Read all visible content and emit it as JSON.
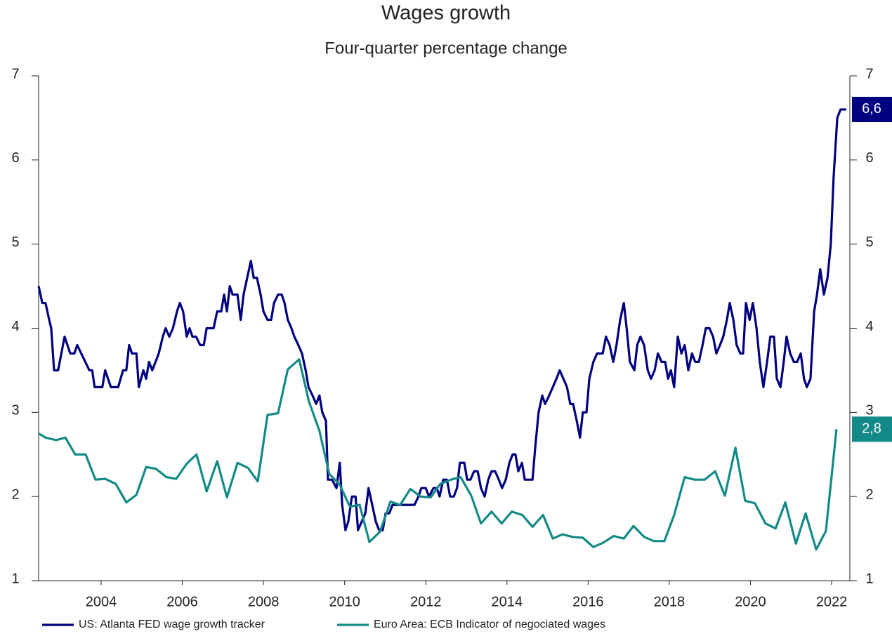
{
  "chart_data": {
    "type": "line",
    "title": "Wages growth",
    "subtitle": "Four-quarter percentage change",
    "xlim": [
      2002.46,
      2022.45
    ],
    "xticks": [
      2004,
      2006,
      2008,
      2010,
      2012,
      2014,
      2016,
      2018,
      2020,
      2022
    ],
    "ylim": [
      1,
      7
    ],
    "yticks": [
      1,
      2,
      3,
      4,
      5,
      6,
      7
    ],
    "y2lim": [
      1,
      7
    ],
    "y2ticks": [
      1,
      2,
      3,
      4,
      5,
      6,
      7
    ],
    "legend": "bottom",
    "series": [
      {
        "name": "US: Atlanta FED wage growth tracker",
        "color": "#000080",
        "end_label": "6,6",
        "x": [
          2002.46,
          2002.55,
          2002.63,
          2002.72,
          2002.77,
          2002.84,
          2002.94,
          2003.1,
          2003.24,
          2003.34,
          2003.41,
          2003.71,
          2003.78,
          2003.84,
          2004.03,
          2004.1,
          2004.24,
          2004.42,
          2004.54,
          2004.62,
          2004.69,
          2004.76,
          2004.87,
          2004.93,
          2005.04,
          2005.11,
          2005.18,
          2005.26,
          2005.42,
          2005.52,
          2005.59,
          2005.68,
          2005.77,
          2005.87,
          2005.94,
          2006.02,
          2006.11,
          2006.18,
          2006.25,
          2006.34,
          2006.44,
          2006.53,
          2006.6,
          2006.77,
          2006.86,
          2006.96,
          2007.03,
          2007.1,
          2007.17,
          2007.24,
          2007.36,
          2007.44,
          2007.51,
          2007.6,
          2007.69,
          2007.76,
          2007.84,
          2007.93,
          2008.0,
          2008.1,
          2008.19,
          2008.26,
          2008.36,
          2008.45,
          2008.52,
          2008.6,
          2008.69,
          2008.76,
          2008.86,
          2008.95,
          2009.04,
          2009.11,
          2009.21,
          2009.3,
          2009.38,
          2009.45,
          2009.54,
          2009.59,
          2009.69,
          2009.8,
          2009.88,
          2009.94,
          2010.02,
          2010.09,
          2010.18,
          2010.27,
          2010.33,
          2010.42,
          2010.51,
          2010.59,
          2010.68,
          2010.77,
          2010.85,
          2010.94,
          2011.01,
          2011.1,
          2011.18,
          2011.29,
          2011.37,
          2011.46,
          2011.72,
          2011.82,
          2011.89,
          2012.0,
          2012.08,
          2012.19,
          2012.27,
          2012.34,
          2012.43,
          2012.52,
          2012.6,
          2012.69,
          2012.77,
          2012.84,
          2012.95,
          2013.02,
          2013.1,
          2013.19,
          2013.28,
          2013.36,
          2013.45,
          2013.54,
          2013.62,
          2013.71,
          2013.8,
          2013.88,
          2013.97,
          2014.06,
          2014.14,
          2014.21,
          2014.28,
          2014.37,
          2014.44,
          2014.63,
          2014.7,
          2014.78,
          2014.87,
          2014.94,
          2015.04,
          2015.13,
          2015.22,
          2015.3,
          2015.39,
          2015.48,
          2015.56,
          2015.63,
          2015.72,
          2015.8,
          2015.87,
          2015.96,
          2016.03,
          2016.13,
          2016.22,
          2016.36,
          2016.44,
          2016.53,
          2016.62,
          2016.7,
          2016.79,
          2016.88,
          2016.95,
          2017.03,
          2017.14,
          2017.21,
          2017.29,
          2017.38,
          2017.47,
          2017.55,
          2017.64,
          2017.72,
          2017.81,
          2017.9,
          2017.97,
          2018.04,
          2018.12,
          2018.21,
          2018.3,
          2018.38,
          2018.47,
          2018.56,
          2018.64,
          2018.73,
          2018.82,
          2018.9,
          2018.99,
          2019.08,
          2019.16,
          2019.25,
          2019.33,
          2019.42,
          2019.49,
          2019.58,
          2019.66,
          2019.75,
          2019.82,
          2019.89,
          2019.98,
          2020.06,
          2020.15,
          2020.23,
          2020.32,
          2020.41,
          2020.49,
          2020.58,
          2020.65,
          2020.74,
          2020.82,
          2020.89,
          2020.98,
          2021.07,
          2021.15,
          2021.24,
          2021.32,
          2021.39,
          2021.48,
          2021.57,
          2021.64,
          2021.72,
          2021.81,
          2021.9,
          2021.98,
          2022.05,
          2022.14,
          2022.22,
          2022.36
        ],
        "values": [
          4.5,
          4.3,
          4.3,
          4.1,
          4.0,
          3.5,
          3.5,
          3.9,
          3.7,
          3.7,
          3.8,
          3.5,
          3.5,
          3.3,
          3.3,
          3.5,
          3.3,
          3.3,
          3.5,
          3.5,
          3.8,
          3.7,
          3.7,
          3.3,
          3.5,
          3.4,
          3.6,
          3.5,
          3.7,
          3.9,
          4.0,
          3.9,
          4.0,
          4.2,
          4.3,
          4.2,
          3.9,
          4.0,
          3.9,
          3.9,
          3.8,
          3.8,
          4.0,
          4.0,
          4.2,
          4.2,
          4.4,
          4.2,
          4.5,
          4.4,
          4.4,
          4.1,
          4.4,
          4.6,
          4.8,
          4.6,
          4.6,
          4.4,
          4.2,
          4.1,
          4.1,
          4.3,
          4.4,
          4.4,
          4.3,
          4.1,
          4.0,
          3.9,
          3.8,
          3.7,
          3.5,
          3.3,
          3.2,
          3.1,
          3.2,
          3.0,
          2.9,
          2.2,
          2.2,
          2.1,
          2.4,
          1.9,
          1.6,
          1.7,
          2.0,
          2.0,
          1.6,
          1.7,
          1.8,
          2.1,
          1.9,
          1.7,
          1.6,
          1.6,
          1.8,
          1.8,
          1.9,
          1.9,
          1.9,
          1.9,
          1.9,
          2.0,
          2.1,
          2.1,
          2.0,
          2.1,
          2.1,
          2.0,
          2.2,
          2.2,
          2.0,
          2.0,
          2.1,
          2.4,
          2.4,
          2.2,
          2.2,
          2.3,
          2.3,
          2.1,
          2.0,
          2.2,
          2.3,
          2.3,
          2.2,
          2.1,
          2.2,
          2.4,
          2.5,
          2.5,
          2.3,
          2.4,
          2.2,
          2.2,
          2.6,
          3.0,
          3.2,
          3.1,
          3.2,
          3.3,
          3.4,
          3.5,
          3.4,
          3.3,
          3.1,
          3.1,
          2.9,
          2.7,
          3.0,
          3.0,
          3.4,
          3.6,
          3.7,
          3.7,
          3.9,
          3.8,
          3.6,
          3.8,
          4.1,
          4.3,
          4.0,
          3.6,
          3.5,
          3.8,
          3.9,
          3.8,
          3.5,
          3.4,
          3.5,
          3.7,
          3.6,
          3.6,
          3.4,
          3.5,
          3.3,
          3.9,
          3.7,
          3.8,
          3.5,
          3.7,
          3.6,
          3.6,
          3.8,
          4.0,
          4.0,
          3.9,
          3.7,
          3.8,
          3.9,
          4.1,
          4.3,
          4.1,
          3.8,
          3.7,
          3.7,
          4.3,
          4.1,
          4.3,
          4.0,
          3.6,
          3.3,
          3.6,
          3.9,
          3.9,
          3.4,
          3.3,
          3.6,
          3.9,
          3.7,
          3.6,
          3.6,
          3.7,
          3.4,
          3.3,
          3.4,
          4.2,
          4.4,
          4.7,
          4.4,
          4.6,
          5.0,
          5.8,
          6.5,
          6.6,
          6.6
        ]
      },
      {
        "name": "Euro Area: ECB Indicator of negociated wages",
        "color": "#138a87",
        "end_label": "2,8",
        "x": [
          2002.46,
          2002.63,
          2002.89,
          2003.12,
          2003.36,
          2003.62,
          2003.86,
          2004.1,
          2004.36,
          2004.62,
          2004.87,
          2005.11,
          2005.35,
          2005.61,
          2005.85,
          2006.11,
          2006.35,
          2006.6,
          2006.86,
          2007.1,
          2007.36,
          2007.62,
          2007.86,
          2008.1,
          2008.36,
          2008.6,
          2008.88,
          2009.12,
          2009.38,
          2009.62,
          2009.88,
          2010.13,
          2010.37,
          2010.61,
          2010.87,
          2011.13,
          2011.37,
          2011.62,
          2011.87,
          2012.12,
          2012.36,
          2012.62,
          2012.86,
          2013.12,
          2013.36,
          2013.62,
          2013.87,
          2014.12,
          2014.38,
          2014.63,
          2014.89,
          2015.13,
          2015.37,
          2015.61,
          2015.87,
          2016.13,
          2016.37,
          2016.63,
          2016.88,
          2017.12,
          2017.38,
          2017.62,
          2017.88,
          2018.12,
          2018.38,
          2018.62,
          2018.87,
          2019.13,
          2019.37,
          2019.63,
          2019.87,
          2020.11,
          2020.37,
          2020.62,
          2020.86,
          2021.12,
          2021.36,
          2021.62,
          2021.86,
          2022.12
        ],
        "values": [
          2.75,
          2.7,
          2.67,
          2.7,
          2.5,
          2.5,
          2.2,
          2.21,
          2.15,
          1.93,
          2.02,
          2.35,
          2.33,
          2.23,
          2.21,
          2.39,
          2.5,
          2.06,
          2.42,
          1.99,
          2.4,
          2.34,
          2.18,
          2.97,
          2.99,
          3.51,
          3.63,
          3.13,
          2.78,
          2.27,
          2.14,
          1.88,
          1.9,
          1.46,
          1.58,
          1.94,
          1.9,
          2.09,
          2.0,
          1.99,
          2.15,
          2.2,
          2.23,
          2.01,
          1.68,
          1.82,
          1.68,
          1.82,
          1.78,
          1.64,
          1.78,
          1.5,
          1.55,
          1.52,
          1.51,
          1.4,
          1.45,
          1.53,
          1.5,
          1.65,
          1.52,
          1.47,
          1.47,
          1.78,
          2.23,
          2.2,
          2.2,
          2.3,
          2.01,
          2.58,
          1.95,
          1.92,
          1.68,
          1.62,
          1.93,
          1.44,
          1.8,
          1.37,
          1.59,
          2.8
        ]
      }
    ]
  }
}
